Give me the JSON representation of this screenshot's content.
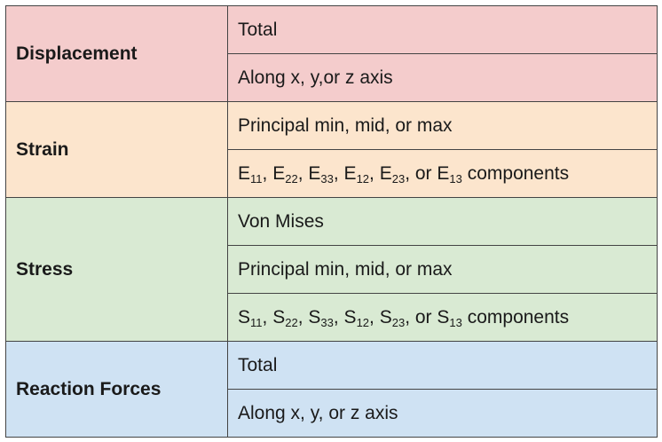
{
  "colors": {
    "displacement": "#f4cccc",
    "strain": "#fce5cd",
    "stress": "#d9ead3",
    "reaction_forces": "#cfe2f3",
    "border": "#444444"
  },
  "displacement": {
    "label": "Displacement",
    "rows": [
      "Total",
      "Along x, y,or z axis"
    ]
  },
  "strain": {
    "label": "Strain",
    "row1": "Principal min, mid, or max",
    "components": {
      "letter": "E",
      "subs": [
        "11",
        "22",
        "33",
        "12",
        "23",
        "13"
      ],
      "sep": ",",
      "last_sep": ", or",
      "suffix": "components"
    }
  },
  "stress": {
    "label": "Stress",
    "row1": "Von Mises",
    "row2": "Principal min, mid, or max",
    "components": {
      "letter": "S",
      "subs": [
        "11",
        "22",
        "33",
        "12",
        "23",
        "13"
      ],
      "sep": ",",
      "last_sep": ", or",
      "suffix": "components"
    }
  },
  "reaction_forces": {
    "label": "Reaction Forces",
    "rows": [
      "Total",
      "Along x, y, or z axis"
    ]
  }
}
